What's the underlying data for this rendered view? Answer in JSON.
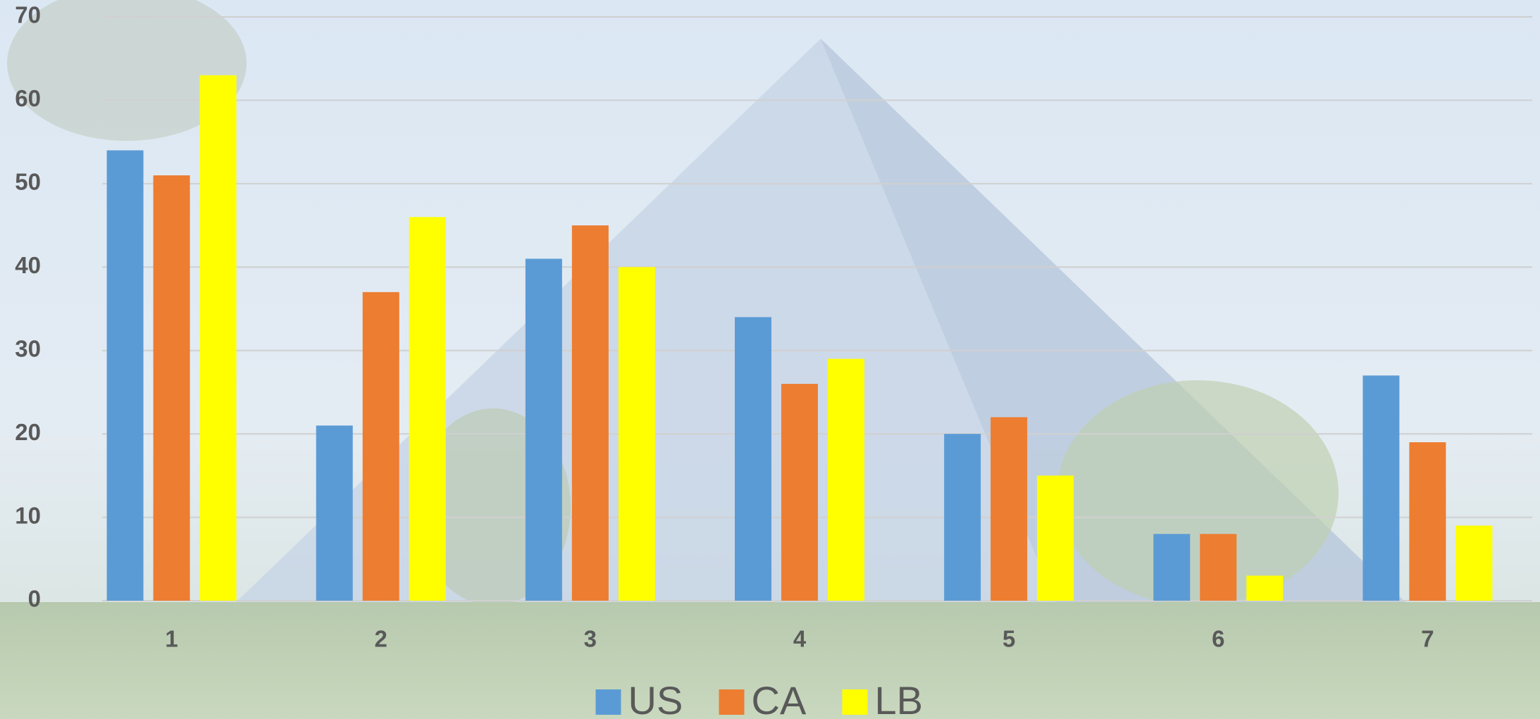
{
  "chart_data": {
    "type": "bar",
    "categories": [
      "1",
      "2",
      "3",
      "4",
      "5",
      "6",
      "7"
    ],
    "series": [
      {
        "name": "US",
        "color": "#5b9bd5",
        "values": [
          54,
          21,
          41,
          34,
          20,
          8,
          27
        ]
      },
      {
        "name": "CA",
        "color": "#ed7d31",
        "values": [
          51,
          37,
          45,
          26,
          22,
          8,
          19
        ]
      },
      {
        "name": "LB",
        "color": "#ffff00",
        "values": [
          63,
          46,
          40,
          29,
          15,
          3,
          9
        ]
      }
    ],
    "ylim": [
      0,
      70
    ],
    "yticks": [
      0,
      10,
      20,
      30,
      40,
      50,
      60,
      70
    ],
    "grid": true,
    "legend": "bottom"
  }
}
